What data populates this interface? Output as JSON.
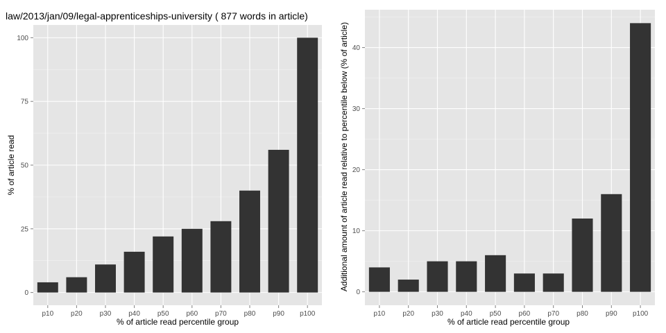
{
  "colors": {
    "bar": "#333333",
    "panel": "#e5e5e5",
    "grid": "#ffffff"
  },
  "chart_data": [
    {
      "type": "bar",
      "title": "law/2013/jan/09/legal-apprenticeships-university ( 877 words in article)",
      "xlabel": "% of article read percentile group",
      "ylabel": "% of article read",
      "categories": [
        "p10",
        "p20",
        "p30",
        "p40",
        "p50",
        "p60",
        "p70",
        "p80",
        "p90",
        "p100"
      ],
      "values": [
        4,
        6,
        11,
        16,
        22,
        25,
        28,
        40,
        56,
        100
      ],
      "ylim": [
        -5,
        105
      ],
      "yticks": [
        0,
        25,
        50,
        75,
        100
      ],
      "grid": true
    },
    {
      "type": "bar",
      "title": "",
      "xlabel": "% of article read percentile group",
      "ylabel": "Additional amount of article read relative to percentile below (% of article)",
      "categories": [
        "p10",
        "p20",
        "p30",
        "p40",
        "p50",
        "p60",
        "p70",
        "p80",
        "p90",
        "p100"
      ],
      "values": [
        4,
        2,
        5,
        5,
        6,
        3,
        3,
        12,
        16,
        44
      ],
      "ylim": [
        -2.2,
        46.2
      ],
      "yticks": [
        0,
        10,
        20,
        30,
        40
      ],
      "grid": true
    }
  ]
}
